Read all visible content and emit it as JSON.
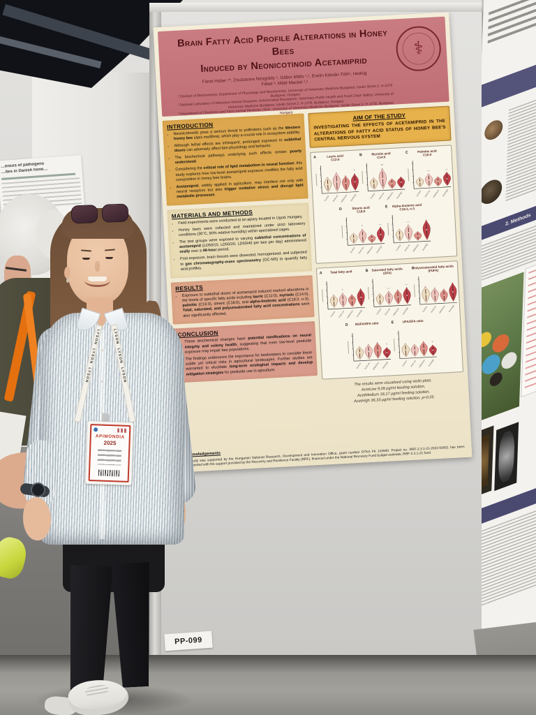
{
  "scene": {
    "board_label": "PP-099"
  },
  "background": {
    "left_poster": {
      "line1": "…ences of pathogens",
      "line2": "…ites in Danish hone…"
    },
    "right_poster": {
      "methods_label": "2. Methods"
    }
  },
  "person": {
    "lanyard_brand": "LYSON",
    "badge": {
      "event": "APIMONDIA",
      "year": "2025"
    }
  },
  "poster": {
    "title_line1": "Brain Fatty Acid Profile Alterations in Honey Bees",
    "title_line2": "Induced by Neonicotinoid Acetamiprid",
    "authors_line1": "Fanni Huber ¹*, Zsuzsanna Neogrády ¹, Gábor Mátis ¹,², Evelin Kámán-Tóth¹, Hedvig",
    "authors_line2": "Fébel ³, Máté Mackei ¹,²",
    "affiliations": [
      "¹ Division of Biochemistry, Department of Physiology and Biochemistry, University of Veterinary Medicine Budapest, István Street 2, H-1078 Budapest, Hungary",
      "² National Laboratory of Infectious Animal Diseases, Antimicrobial Resistance, Veterinary Public Health and Food Chain Safety, University of Veterinary Medicine Budapest, István Street 2, H-1078, Budapest, Hungary",
      "³ Department of Obstetrics and Farm Animal Medicine Clinic, University of Veterinary Medicine Budapest, István Street 2, H-1078, Budapest, Hungary"
    ],
    "seal_symbol": "⚕",
    "sections": {
      "introduction": {
        "heading": "INTRODUCTION",
        "items": [
          "Neonicotinoids pose a serious threat to pollinators such as the **Western honey bee** (*Apis mellifera*), which play a crucial role in ecosystem stability.",
          "Although lethal effects are infrequent, prolonged exposure to **sublethal doses** can adversely affect bee physiology and behavior.",
          "The biochemical pathways underlying such effects remain **poorly understood**",
          "Considering the **critical role of lipid metabolism in neural function**, this study explores how low-level acetamiprid exposure modifies the fatty acid composition in honey bee brains.",
          "**Acetamiprid**, widely applied in agriculture, may interfere not only with neural receptors but also **trigger oxidative stress and disrupt lipid metabolic processes**"
        ]
      },
      "methods": {
        "heading": "MATERIALS AND METHODS",
        "items": [
          "Field experiments were conducted at an apiary located in Ugod, Hungary.",
          "Honey bees were collected and maintained under strict laboratory conditions (30°C, 90% relative humidity) within specialized cages.",
          "The test groups were exposed to varying **sublethal concentrations of acetamiprid** (LD50/10, LD50/20, LD50/40 per bee per day) administered **orally** over a **48-hour** period.",
          "Post-exposure, brain tissues were dissected, homogenized, and subjected to **gas chromatography-mass spectrometry** (GC-MS) to quantify fatty acid profiles."
        ]
      },
      "results": {
        "heading": "RESULTS",
        "items": [
          "Exposure to sublethal doses of acetamiprid induced marked alterations in the levels of specific fatty acids including **lauric** (C12:0), **myristic** (C14:0), **palmitic** (C16:0), stearic (C18:0), and **alpha-linolenic acid** (C18:3, n-3). **Total, saturated, and polyunsaturated fatty acid concentrations** were also significantly affected."
        ]
      },
      "conclusion": {
        "heading": "CONCLUSION",
        "items": [
          "These biochemical changes have **potential ramifications on neural integrity and colony health**, suggesting that even low-level pesticide exposure may impair bee populations.",
          "The findings underscore the importance for beekeepers to consider these subtle yet critical risks in agricultural landscapes. Further studies are warranted to elucidate **long-term ecological impacts and develop mitigation strategies** for pesticide use in apiculture."
        ]
      },
      "aim": {
        "heading": "AIM OF THE STUDY",
        "body": "INVESTIGATING THE EFFECTS OF ACETAMIPRID IN THE ALTERATIONS OF FATTY ACID STATUS OF HONEY BEE'S CENTRAL NERVOUS SYSTEM"
      }
    },
    "violin": {
      "groups": [
        "Control",
        "AcetLow",
        "AcetMedium",
        "AcetHigh"
      ],
      "colors": [
        "#ebdfc0",
        "#eec5bd",
        "#dd8f85",
        "#bc4049"
      ]
    },
    "figures": [
      {
        "panels": [
          {
            "letter": "A",
            "title": "Lauric acid",
            "subtitle": "C12:0",
            "h": [
              0.62,
              0.8,
              0.65,
              0.72
            ],
            "marks": [
              [
                3,
                "*"
              ]
            ]
          },
          {
            "letter": "B",
            "title": "Myristic acid",
            "subtitle": "C14:0",
            "h": [
              0.5,
              0.88,
              0.42,
              0.48
            ],
            "marks": [
              [
                1,
                "**"
              ]
            ]
          },
          {
            "letter": "C",
            "title": "Palmitic acid",
            "subtitle": "C16:0",
            "h": [
              0.42,
              0.55,
              0.4,
              0.58
            ],
            "marks": [
              [
                1,
                "—"
              ],
              [
                3,
                "—"
              ]
            ]
          },
          {
            "letter": "D",
            "title": "Stearic acid",
            "subtitle": "C18:0",
            "h": [
              0.45,
              0.6,
              0.35,
              0.65
            ],
            "marks": [
              [
                1,
                "*"
              ],
              [
                3,
                "—"
              ]
            ]
          },
          {
            "letter": "E",
            "title": "Alpha-linolenic acid",
            "subtitle": "C18:3, n-3",
            "h": [
              0.52,
              0.68,
              0.38,
              0.85
            ],
            "marks": [
              [
                1,
                "—"
              ]
            ]
          }
        ]
      },
      {
        "panels": [
          {
            "letter": "A",
            "title": "Total fatty acid",
            "subtitle": "",
            "h": [
              0.55,
              0.6,
              0.52,
              0.75
            ],
            "marks": [
              [
                1,
                "*"
              ]
            ]
          },
          {
            "letter": "B",
            "title": "Saturated fatty acids",
            "subtitle": "(SFA)",
            "h": [
              0.5,
              0.58,
              0.62,
              0.7
            ],
            "marks": [
              [
                1,
                "—"
              ],
              [
                3,
                "—"
              ]
            ]
          },
          {
            "letter": "C",
            "title": "Polyunsaturated fatty acids",
            "subtitle": "(PUFA)",
            "h": [
              0.7,
              0.62,
              0.55,
              0.8
            ],
            "marks": []
          },
          {
            "letter": "D",
            "title": "MUFA/SFA ratio",
            "subtitle": "",
            "h": [
              0.55,
              0.62,
              0.68,
              0.45
            ],
            "marks": [
              [
                3,
                "*"
              ]
            ]
          },
          {
            "letter": "E",
            "title": "UFA/SFA ratio",
            "subtitle": "",
            "h": [
              0.58,
              0.52,
              0.62,
              0.45
            ],
            "marks": [
              [
                3,
                "*"
              ]
            ]
          }
        ]
      }
    ],
    "caption_lines": [
      "The results were visualized using violin plots.",
      "AcetLow 9,09 μg/ml feeding solution,",
      "AcetMedium 18,17 μg/ml feeding solution,",
      "AcetHigh 36,33 μg/ml feeding solution, p<0.05"
    ],
    "acknowledgements": {
      "heading": "Acknowledgements",
      "text": "The study was supported by the Hungarian National Research, Development and Innovation Office, grant number OTKA FK 134940. Project no. RRF-2.3.1-21-2022-00001 has been implemented with the support provided by the Recovery and Resilience Facility (RRF), financed under the National Recovery Fund budget estimate, RRF-2.3.1-21 fund."
    }
  }
}
